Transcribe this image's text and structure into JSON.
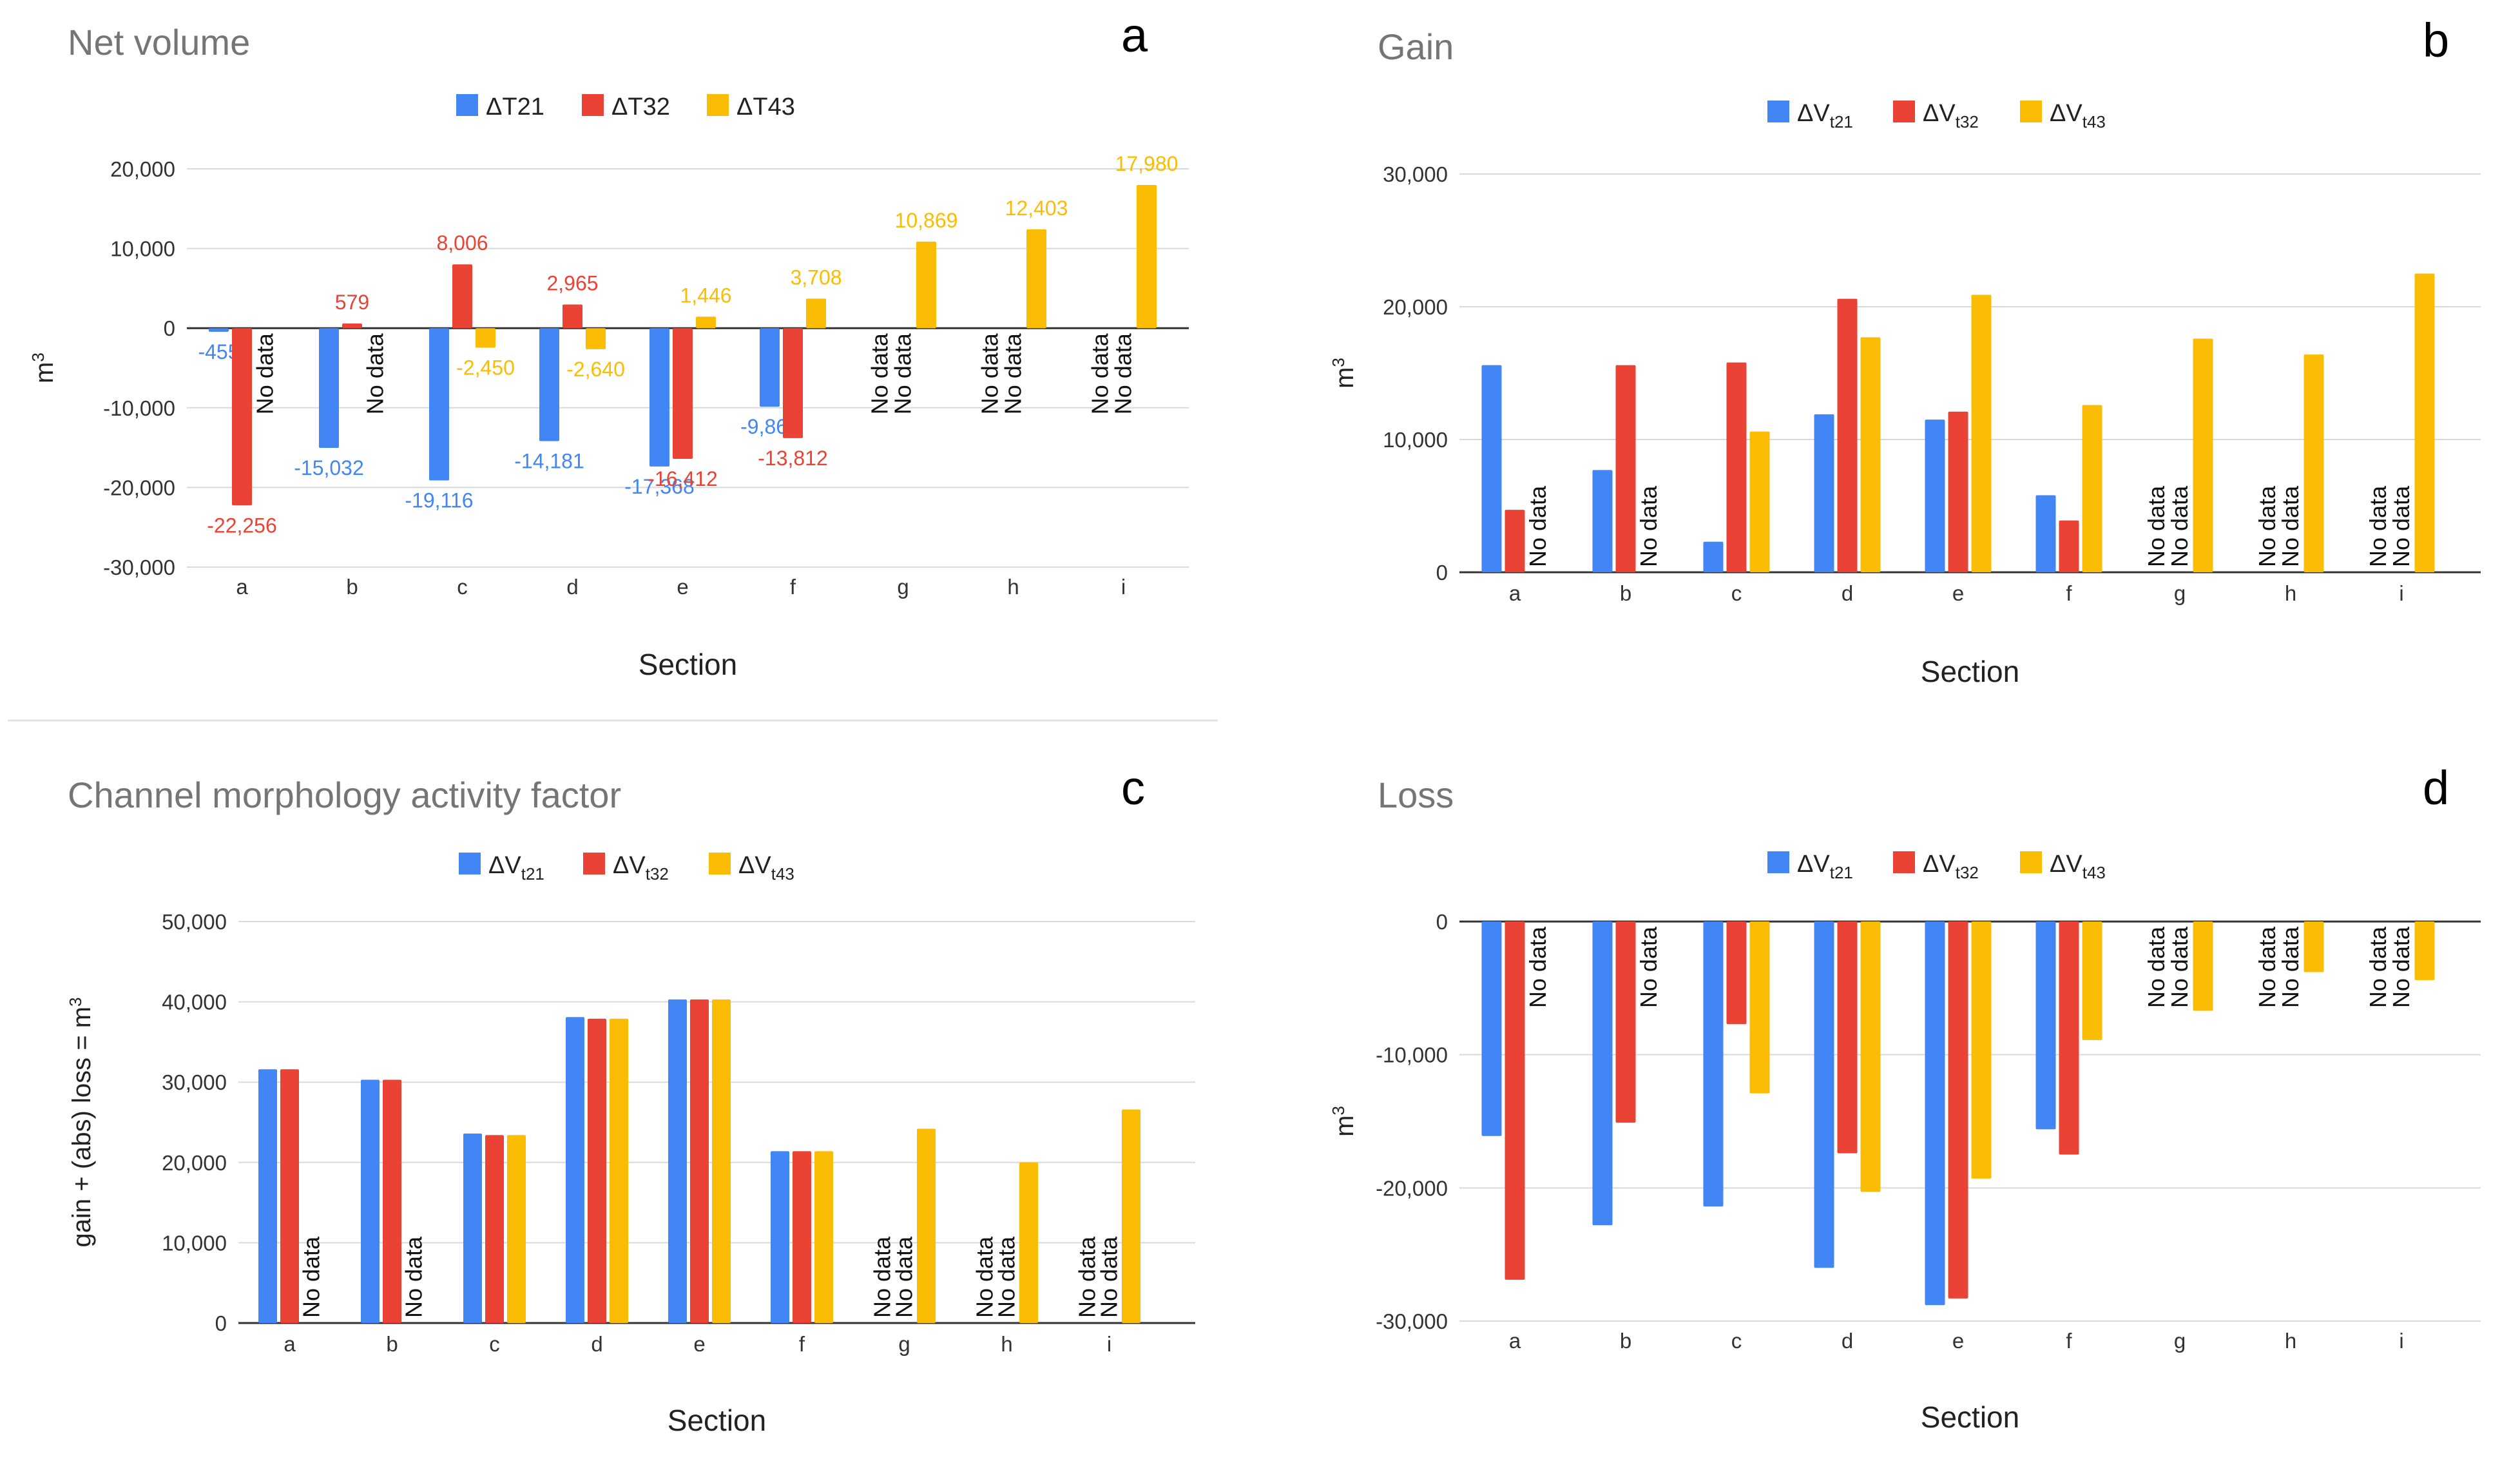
{
  "colors": {
    "blue": "#4285f4",
    "red": "#ea4335",
    "yellow": "#fbbc04"
  },
  "no_data_label": "No data",
  "chart_data": [
    {
      "id": "a",
      "type": "bar",
      "title": "Net volume",
      "panel_letter": "a",
      "xlabel": "Section",
      "ylabel": "m",
      "ylabel_sup": "3",
      "ylim": [
        -30000,
        20000
      ],
      "yticks": [
        20000,
        10000,
        0,
        -10000,
        -20000,
        -30000
      ],
      "ytick_labels": [
        "20,000",
        "10,000",
        "0",
        "-10,000",
        "-20,000",
        "-30,000"
      ],
      "categories": [
        "a",
        "b",
        "c",
        "d",
        "e",
        "f",
        "g",
        "h",
        "i"
      ],
      "series": [
        {
          "name": "ΔT21",
          "name_main": "ΔT21",
          "name_sub": "",
          "color": "#4285f4",
          "values": [
            -455,
            -15032,
            -19116,
            -14181,
            -17368,
            -9869,
            null,
            null,
            null
          ],
          "labels": [
            "-455",
            "-15,032",
            "-19,116",
            "-14,181",
            "-17,368",
            "-9,869",
            "",
            "",
            ""
          ]
        },
        {
          "name": "ΔT32",
          "name_main": "ΔT32",
          "name_sub": "",
          "color": "#ea4335",
          "values": [
            -22256,
            579,
            8006,
            2965,
            -16412,
            -13812,
            null,
            null,
            null
          ],
          "labels": [
            "-22,256",
            "579",
            "8,006",
            "2,965",
            "-16,412",
            "-13,812",
            "",
            "",
            ""
          ]
        },
        {
          "name": "ΔT43",
          "name_main": "ΔT43",
          "name_sub": "",
          "color": "#fbbc04",
          "values": [
            null,
            null,
            -2450,
            -2640,
            1446,
            3708,
            10869,
            12403,
            17980
          ],
          "labels": [
            "",
            "",
            "-2,450",
            "-2,640",
            "1,446",
            "3,708",
            "10,869",
            "12,403",
            "17,980"
          ]
        }
      ]
    },
    {
      "id": "b",
      "type": "bar",
      "title": "Gain",
      "panel_letter": "b",
      "xlabel": "Section",
      "ylabel": "m",
      "ylabel_sup": "3",
      "ylim": [
        0,
        30000
      ],
      "yticks": [
        30000,
        20000,
        10000,
        0
      ],
      "ytick_labels": [
        "30,000",
        "20,000",
        "10,000",
        "0"
      ],
      "categories": [
        "a",
        "b",
        "c",
        "d",
        "e",
        "f",
        "g",
        "h",
        "i"
      ],
      "series": [
        {
          "name": "ΔVt21",
          "name_main": "ΔV",
          "name_sub": "t21",
          "color": "#4285f4",
          "values": [
            15600,
            7700,
            2300,
            11900,
            11500,
            5800,
            null,
            null,
            null
          ]
        },
        {
          "name": "ΔVt32",
          "name_main": "ΔV",
          "name_sub": "t32",
          "color": "#ea4335",
          "values": [
            4700,
            15600,
            15800,
            20600,
            12100,
            3900,
            null,
            null,
            null
          ]
        },
        {
          "name": "ΔVt43",
          "name_main": "ΔV",
          "name_sub": "t43",
          "color": "#fbbc04",
          "values": [
            null,
            null,
            10600,
            17700,
            20900,
            12600,
            17600,
            16400,
            22500
          ]
        }
      ]
    },
    {
      "id": "c",
      "type": "bar",
      "title": "Channel morphology activity factor",
      "panel_letter": "c",
      "xlabel": "Section",
      "ylabel": "gain + (abs) loss = m",
      "ylabel_sup": "3",
      "ylim": [
        0,
        50000
      ],
      "yticks": [
        50000,
        40000,
        30000,
        20000,
        10000,
        0
      ],
      "ytick_labels": [
        "50,000",
        "40,000",
        "30,000",
        "20,000",
        "10,000",
        "0"
      ],
      "categories": [
        "a",
        "b",
        "c",
        "d",
        "e",
        "f",
        "g",
        "h",
        "i"
      ],
      "series": [
        {
          "name": "ΔVt21",
          "name_main": "ΔV",
          "name_sub": "t21",
          "color": "#4285f4",
          "values": [
            31600,
            30300,
            23600,
            38100,
            40300,
            21400,
            null,
            null,
            null
          ]
        },
        {
          "name": "ΔVt32",
          "name_main": "ΔV",
          "name_sub": "t32",
          "color": "#ea4335",
          "values": [
            31600,
            30300,
            23400,
            37900,
            40300,
            21400,
            null,
            null,
            null
          ]
        },
        {
          "name": "ΔVt43",
          "name_main": "ΔV",
          "name_sub": "t43",
          "color": "#fbbc04",
          "values": [
            null,
            null,
            23400,
            37900,
            40300,
            21400,
            24200,
            20000,
            26600
          ]
        }
      ]
    },
    {
      "id": "d",
      "type": "bar",
      "title": "Loss",
      "panel_letter": "d",
      "xlabel": "Section",
      "ylabel": "m",
      "ylabel_sup": "3",
      "ylim": [
        -30000,
        0
      ],
      "yticks": [
        0,
        -10000,
        -20000,
        -30000
      ],
      "ytick_labels": [
        "0",
        "-10,000",
        "-20,000",
        "-30,000"
      ],
      "categories": [
        "a",
        "b",
        "c",
        "d",
        "e",
        "f",
        "g",
        "h",
        "i"
      ],
      "series": [
        {
          "name": "ΔVt21",
          "name_main": "ΔV",
          "name_sub": "t21",
          "color": "#4285f4",
          "values": [
            -16100,
            -22800,
            -21400,
            -26000,
            -28800,
            -15600,
            null,
            null,
            null
          ]
        },
        {
          "name": "ΔVt32",
          "name_main": "ΔV",
          "name_sub": "t32",
          "color": "#ea4335",
          "values": [
            -26900,
            -15100,
            -7700,
            -17400,
            -28300,
            -17500,
            null,
            null,
            null
          ]
        },
        {
          "name": "ΔVt43",
          "name_main": "ΔV",
          "name_sub": "t43",
          "color": "#fbbc04",
          "values": [
            null,
            null,
            -12900,
            -20300,
            -19300,
            -8900,
            -6700,
            -3800,
            -4400
          ]
        }
      ]
    }
  ]
}
